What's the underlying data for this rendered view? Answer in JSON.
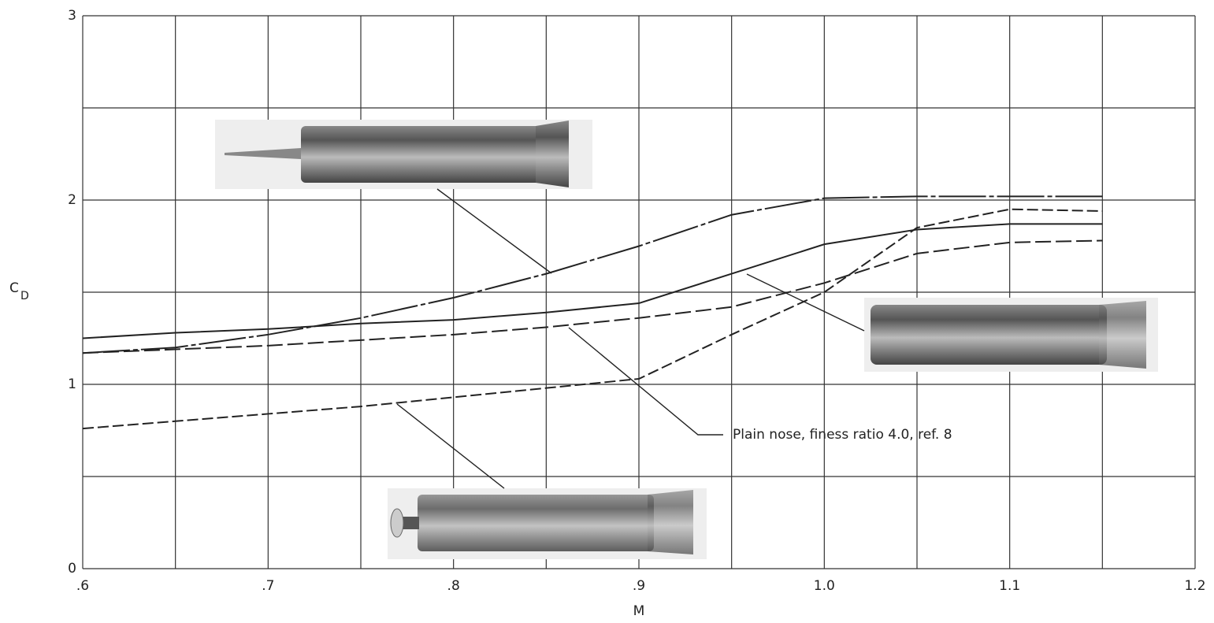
{
  "chart_data": {
    "type": "line",
    "xlabel": "M",
    "ylabel": {
      "text": "C",
      "subscript": "D"
    },
    "annotation": "Plain nose, finess ratio 4.0, ref. 8",
    "xlim": [
      0.6,
      1.2
    ],
    "ylim": [
      0,
      3
    ],
    "xticks": [
      {
        "value": 0.6,
        "label": ".6"
      },
      {
        "value": 0.7,
        "label": ".7"
      },
      {
        "value": 0.8,
        "label": ".8"
      },
      {
        "value": 0.9,
        "label": ".9"
      },
      {
        "value": 1.0,
        "label": "1.0"
      },
      1.1,
      1.2
    ],
    "yticks": [
      0,
      1,
      2,
      3
    ],
    "xgrid": [
      0.6,
      0.65,
      0.7,
      0.75,
      0.8,
      0.85,
      0.9,
      0.95,
      1.0,
      1.05,
      1.1,
      1.15,
      1.2
    ],
    "ygrid": [
      0,
      0.5,
      1,
      1.5,
      2,
      2.5,
      3
    ],
    "x": [
      0.6,
      0.65,
      0.7,
      0.75,
      0.8,
      0.85,
      0.9,
      0.95,
      1.0,
      1.05,
      1.1,
      1.15
    ],
    "series": [
      {
        "color": "#222222",
        "dash": "60 4 6 4",
        "values": [
          1.17,
          1.2,
          1.27,
          1.36,
          1.47,
          1.6,
          1.75,
          1.92,
          2.01,
          2.02,
          2.02,
          2.02
        ]
      },
      {
        "color": "#222222",
        "dash": "none",
        "values": [
          1.25,
          1.28,
          1.3,
          1.33,
          1.35,
          1.39,
          1.44,
          1.6,
          1.76,
          1.84,
          1.87,
          1.87
        ]
      },
      {
        "color": "#222222",
        "dash": "20 6",
        "values": [
          1.17,
          1.19,
          1.21,
          1.24,
          1.27,
          1.31,
          1.36,
          1.42,
          1.55,
          1.71,
          1.77,
          1.78
        ]
      },
      {
        "color": "#222222",
        "dash": "14 5",
        "values": [
          0.76,
          0.8,
          0.84,
          0.88,
          0.93,
          0.98,
          1.03,
          1.27,
          1.5,
          1.85,
          1.95,
          1.94
        ]
      }
    ]
  }
}
